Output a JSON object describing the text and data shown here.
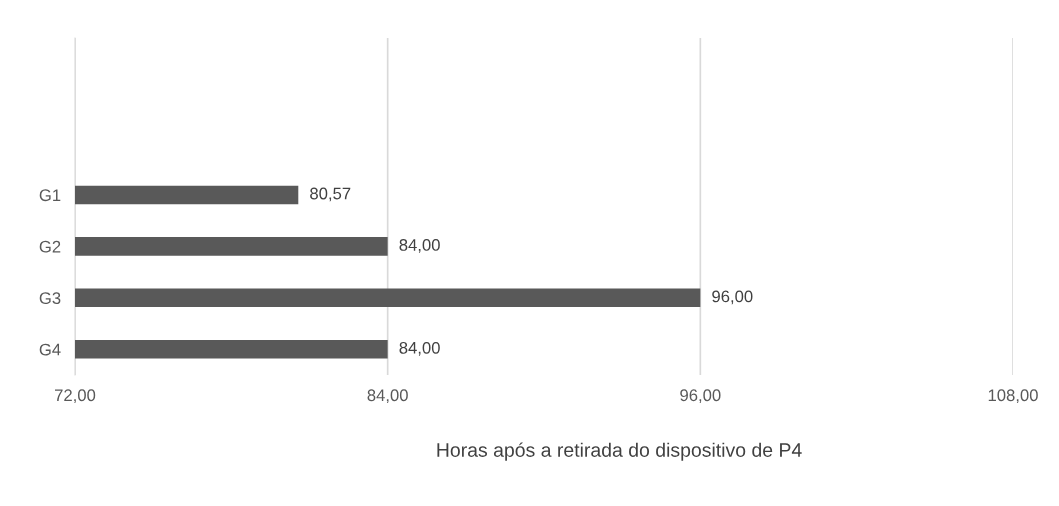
{
  "chart_data": {
    "type": "bar",
    "orientation": "horizontal",
    "xlabel": "Horas após a retirada do dispositivo de P4",
    "categories": [
      "G1",
      "G2",
      "G3",
      "G4"
    ],
    "values": [
      80.57,
      84.0,
      96.0,
      84.0
    ],
    "value_labels": [
      "80,57",
      "84,00",
      "96,00",
      "84,00"
    ],
    "color": "#595959",
    "xlim": [
      72,
      108
    ],
    "xticks": [
      {
        "value": 72,
        "label": "72,00"
      },
      {
        "value": 84,
        "label": "84,00"
      },
      {
        "value": 96,
        "label": "96,00"
      },
      {
        "value": 108,
        "label": "108,00"
      }
    ],
    "grid": "x",
    "legend": false
  }
}
